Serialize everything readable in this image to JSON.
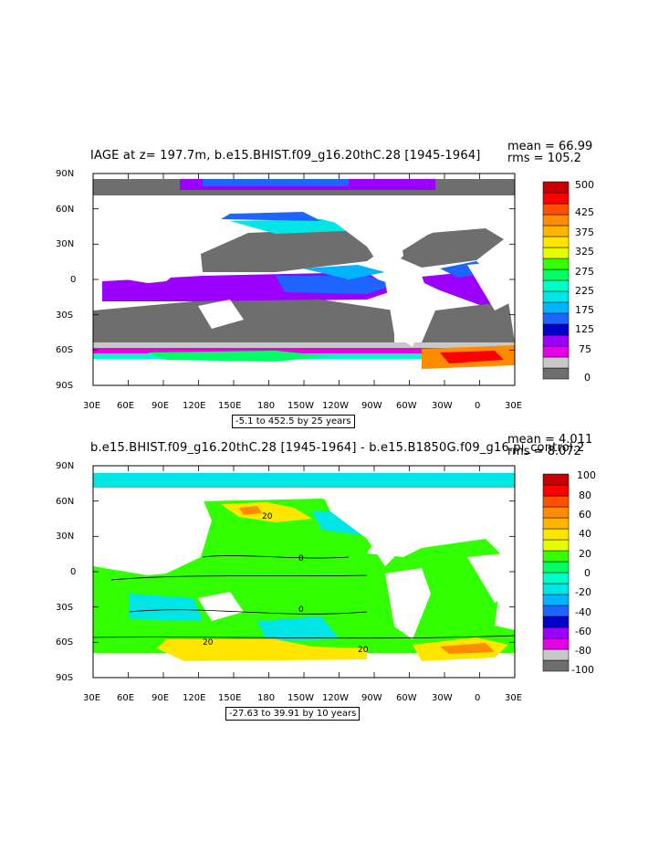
{
  "panels": [
    {
      "title": "IAGE at z= 197.7m, b.e15.BHIST.f09_g16.20thC.28 [1945-1964]",
      "mean_label": "mean = 66.99",
      "rms_label": "rms = 105.2",
      "range_label": "-5.1 to 452.5 by 25 years",
      "colorbar_labels": [
        "0",
        "75",
        "125",
        "175",
        "225",
        "275",
        "325",
        "375",
        "425",
        "500"
      ],
      "colorbar_colors": [
        "#6e6e6e",
        "#c8c8c8",
        "#e600e6",
        "#9b00ff",
        "#0000c8",
        "#1e64ff",
        "#00b4ff",
        "#00e6e6",
        "#00ffc8",
        "#00ff64",
        "#32ff00",
        "#e6ff00",
        "#ffe600",
        "#ffb400",
        "#ff8c00",
        "#ff5000",
        "#ff0000",
        "#c80000"
      ]
    },
    {
      "title": "b.e15.BHIST.f09_g16.20thC.28 [1945-1964] - b.e15.B1850G.f09_g16.pi_control.2",
      "mean_label": "mean = 4.011",
      "rms_label": "rms = 8.072",
      "range_label": "-27.63 to 39.91 by 10 years",
      "colorbar_labels": [
        "100",
        "80",
        "60",
        "40",
        "20",
        "0",
        "-20",
        "-40",
        "-60",
        "-80",
        "-100"
      ],
      "colorbar_colors": [
        "#6e6e6e",
        "#c8c8c8",
        "#e600e6",
        "#9b00ff",
        "#0000c8",
        "#1e64ff",
        "#00b4ff",
        "#00e6e6",
        "#00ffc8",
        "#00ff64",
        "#32ff00",
        "#e6ff00",
        "#ffe600",
        "#ffb400",
        "#ff8c00",
        "#ff5000",
        "#ff0000",
        "#c80000"
      ]
    }
  ],
  "axes": {
    "lat_labels": [
      "90N",
      "60N",
      "30N",
      "0",
      "30S",
      "60S",
      "90S"
    ],
    "lon_labels": [
      "30E",
      "60E",
      "90E",
      "120E",
      "150E",
      "180",
      "150W",
      "120W",
      "90W",
      "60W",
      "30W",
      "0",
      "30E"
    ]
  },
  "chart_data": [
    {
      "type": "heatmap",
      "title": "IAGE at z= 197.7m, b.e15.BHIST.f09_g16.20thC.28 [1945-1964]",
      "variable": "IAGE",
      "units": "years",
      "depth_m": 197.7,
      "xlabel": "",
      "ylabel": "",
      "xlim": [
        "30E",
        "30E"
      ],
      "ylim": [
        "90S",
        "90N"
      ],
      "value_range": [
        -5.1,
        452.5
      ],
      "contour_interval": 25,
      "mean": 66.99,
      "rms": 105.2,
      "colorbar_ticks": [
        0,
        75,
        125,
        175,
        225,
        275,
        325,
        375,
        425,
        500
      ],
      "x_ticks": [
        "30E",
        "60E",
        "90E",
        "120E",
        "150E",
        "180",
        "150W",
        "120W",
        "90W",
        "60W",
        "30W",
        "0",
        "30E"
      ],
      "y_ticks": [
        "90N",
        "60N",
        "30N",
        "0",
        "30S",
        "60S",
        "90S"
      ]
    },
    {
      "type": "heatmap",
      "title": "b.e15.BHIST.f09_g16.20thC.28 [1945-1964] - b.e15.B1850G.f09_g16.pi_control.2",
      "units": "years",
      "xlabel": "",
      "ylabel": "",
      "xlim": [
        "30E",
        "30E"
      ],
      "ylim": [
        "90S",
        "90N"
      ],
      "value_range": [
        -27.63,
        39.91
      ],
      "contour_interval": 10,
      "mean": 4.011,
      "rms": 8.072,
      "colorbar_ticks": [
        -100,
        -80,
        -60,
        -40,
        -20,
        0,
        20,
        40,
        60,
        80,
        100
      ],
      "contour_labels": [
        "20",
        "0",
        "0",
        "20",
        "20"
      ],
      "x_ticks": [
        "30E",
        "60E",
        "90E",
        "120E",
        "150E",
        "180",
        "150W",
        "120W",
        "90W",
        "60W",
        "30W",
        "0",
        "30E"
      ],
      "y_ticks": [
        "90N",
        "60N",
        "30N",
        "0",
        "30S",
        "60S",
        "90S"
      ]
    }
  ]
}
